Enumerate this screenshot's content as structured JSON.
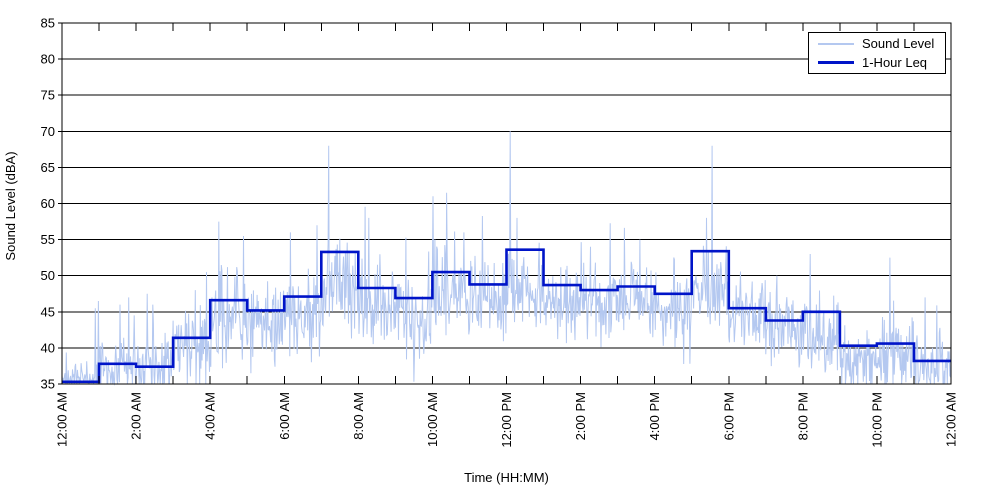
{
  "figure": {
    "background": "#ffffff",
    "frame_color": "#000000",
    "grid_color": "#000000"
  },
  "axes": {
    "x_title": "Time (HH:MM)",
    "y_title": "Sound Level (dBA)"
  },
  "legend": {
    "position": "top-right",
    "items": [
      {
        "label": "Sound Level",
        "color": "#b4c8f0",
        "weight": "thin"
      },
      {
        "label": "1-Hour Leq",
        "color": "#0014c8",
        "weight": "thick"
      }
    ]
  },
  "chart_data": {
    "type": "line",
    "title": "",
    "xlabel": "Time (HH:MM)",
    "ylabel": "Sound Level (dBA)",
    "ylim": [
      35,
      85
    ],
    "xlim_hours": [
      0,
      24
    ],
    "grid": "horizontal-only",
    "legend_position": "top-right",
    "y_ticks": [
      35,
      40,
      45,
      50,
      55,
      60,
      65,
      70,
      75,
      80,
      85
    ],
    "x_tick_hours": [
      0,
      2,
      4,
      6,
      8,
      10,
      12,
      14,
      16,
      18,
      20,
      22,
      24
    ],
    "x_tick_labels": [
      "12:00 AM",
      "2:00 AM",
      "4:00 AM",
      "6:00 AM",
      "8:00 AM",
      "10:00 AM",
      "12:00 PM",
      "2:00 PM",
      "4:00 PM",
      "6:00 PM",
      "8:00 PM",
      "10:00 PM",
      "12:00 AM"
    ],
    "minor_x_tick_every_hours": 1,
    "series": [
      {
        "name": "Sound Level",
        "type": "noisy-minute-samples",
        "color": "#b4c8f0",
        "stroke_width": 1,
        "samples_per_hour": 60,
        "clamp_min": 35,
        "seed": 42,
        "hourly_mean": [
          36.0,
          37.0,
          37.5,
          40.0,
          44.0,
          43.5,
          45.0,
          48.5,
          46.5,
          44.5,
          47.5,
          46.5,
          48.5,
          46.5,
          46.0,
          46.5,
          45.5,
          48.0,
          44.5,
          42.5,
          42.0,
          38.5,
          38.5,
          37.0
        ],
        "hourly_spread": [
          1.3,
          2.2,
          2.8,
          3.8,
          3.8,
          3.3,
          3.3,
          3.3,
          3.3,
          3.8,
          3.3,
          3.0,
          3.3,
          3.0,
          3.0,
          3.0,
          3.0,
          3.3,
          2.6,
          3.0,
          3.4,
          2.6,
          2.9,
          2.4
        ],
        "spikes": [
          {
            "t": 0.9,
            "v": 45.5
          },
          {
            "t": 0.98,
            "v": 46.5
          },
          {
            "t": 1.57,
            "v": 46.0
          },
          {
            "t": 1.8,
            "v": 47.0
          },
          {
            "t": 1.95,
            "v": 44.5
          },
          {
            "t": 2.3,
            "v": 47.5
          },
          {
            "t": 2.45,
            "v": 46.0
          },
          {
            "t": 3.6,
            "v": 48.0
          },
          {
            "t": 3.9,
            "v": 50.5
          },
          {
            "t": 4.24,
            "v": 57.5
          },
          {
            "t": 4.9,
            "v": 55.5
          },
          {
            "t": 6.16,
            "v": 56.0
          },
          {
            "t": 6.88,
            "v": 57.0
          },
          {
            "t": 7.2,
            "v": 68.0
          },
          {
            "t": 8.29,
            "v": 58.0
          },
          {
            "t": 9.5,
            "v": 35.3
          },
          {
            "t": 10.02,
            "v": 61.0
          },
          {
            "t": 10.39,
            "v": 61.5
          },
          {
            "t": 10.85,
            "v": 56.0
          },
          {
            "t": 12.1,
            "v": 70.0
          },
          {
            "t": 12.28,
            "v": 58.0
          },
          {
            "t": 14.26,
            "v": 54.0
          },
          {
            "t": 15.6,
            "v": 55.0
          },
          {
            "t": 17.4,
            "v": 58.0
          },
          {
            "t": 17.55,
            "v": 68.0
          },
          {
            "t": 19.3,
            "v": 50.0
          },
          {
            "t": 20.2,
            "v": 53.0
          },
          {
            "t": 22.35,
            "v": 52.5
          },
          {
            "t": 23.3,
            "v": 47.0
          }
        ]
      },
      {
        "name": "1-Hour Leq",
        "type": "stairs",
        "color": "#0014c8",
        "stroke_width": 2.6,
        "hourly_leq": [
          35.3,
          37.8,
          37.4,
          41.4,
          46.6,
          45.2,
          47.1,
          53.3,
          48.3,
          46.9,
          50.5,
          48.8,
          53.6,
          48.7,
          48.0,
          48.5,
          47.5,
          53.4,
          45.5,
          43.8,
          45.0,
          40.3,
          40.6,
          38.2
        ]
      }
    ]
  }
}
